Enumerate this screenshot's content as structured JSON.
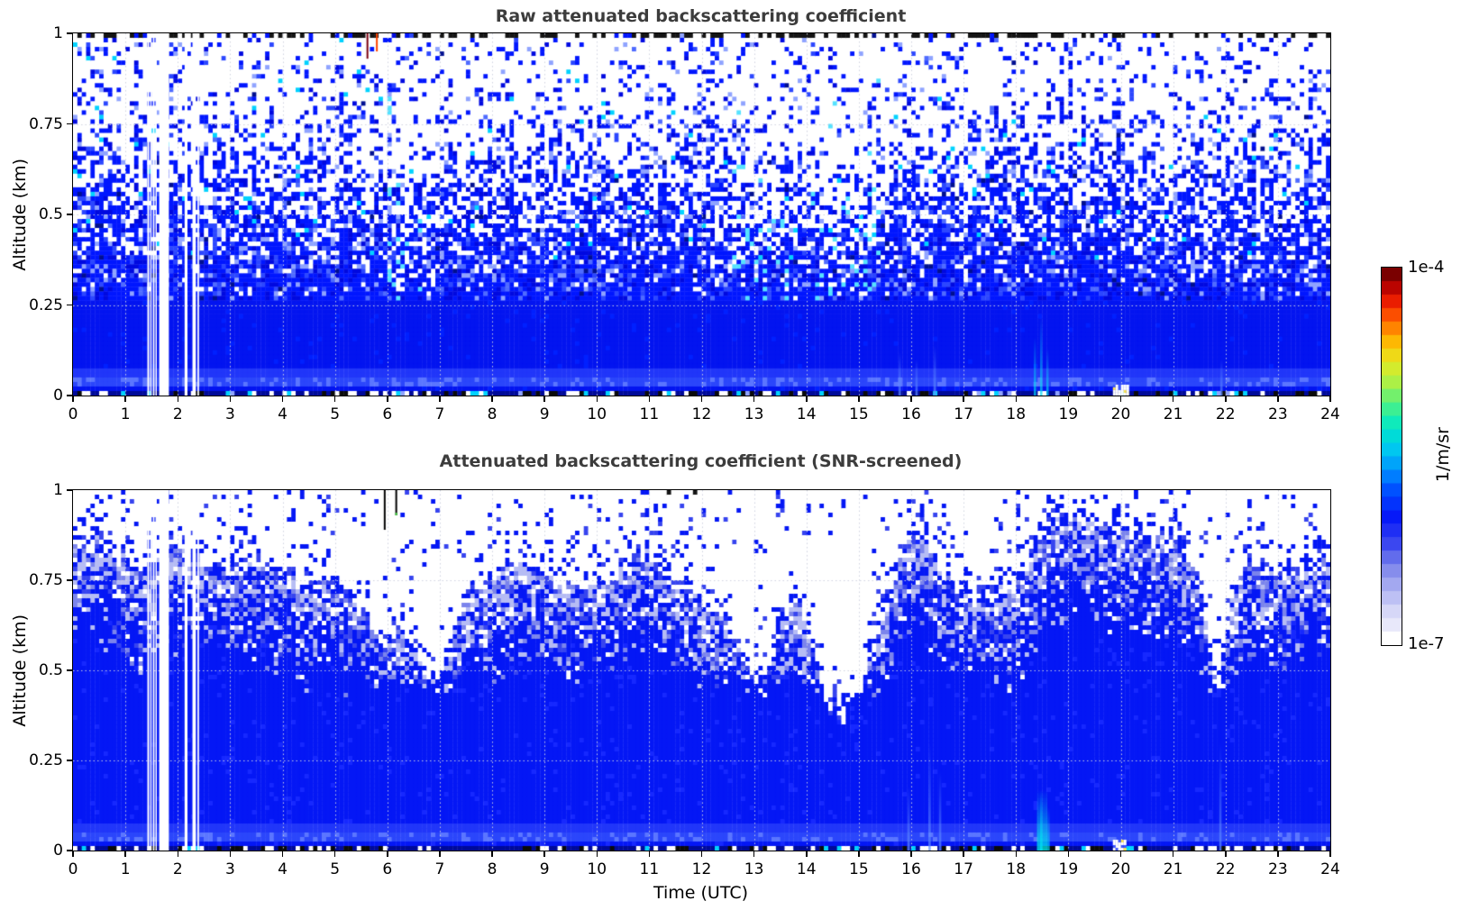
{
  "figure": {
    "background": "#ffffff",
    "title_color": "#3c3c3c"
  },
  "panels": [
    {
      "id": "raw",
      "title": "Raw attenuated backscattering coefficient",
      "ylabel": "Altitude (km)"
    },
    {
      "id": "snr_screened",
      "title": "Attenuated backscattering coefficient (SNR-screened)",
      "ylabel": "Altitude (km)",
      "xlabel": "Time (UTC)"
    }
  ],
  "axes": {
    "x_range": [
      0,
      24
    ],
    "y_range": [
      0,
      1
    ],
    "x_tick_labels": [
      "0",
      "1",
      "2",
      "3",
      "4",
      "5",
      "6",
      "7",
      "8",
      "9",
      "10",
      "11",
      "12",
      "13",
      "14",
      "15",
      "16",
      "17",
      "18",
      "19",
      "20",
      "21",
      "22",
      "23",
      "24"
    ],
    "y_tick_labels": [
      "1",
      "0.75",
      "0.5",
      "0.25",
      "0"
    ],
    "y_tick_values": [
      1,
      0.75,
      0.5,
      0.25,
      0
    ],
    "grid_x_hours": [
      1,
      2,
      3,
      4,
      5,
      6,
      7,
      8,
      9,
      10,
      11,
      12,
      13,
      14,
      15,
      16,
      17,
      18,
      19,
      20,
      21,
      22,
      23
    ],
    "grid_y_km": [
      0.25,
      0.5,
      0.75
    ]
  },
  "colorbar": {
    "top_label": "1e-4",
    "bottom_label": "1e-7",
    "unit_label": "1/m/sr",
    "scale": "log",
    "min": 1e-07,
    "max": 0.0001,
    "segments": 28,
    "stops": [
      [
        0.0,
        "#ffffff"
      ],
      [
        0.03,
        "#ecebfb"
      ],
      [
        0.08,
        "#d3d4f7"
      ],
      [
        0.14,
        "#a9aef1"
      ],
      [
        0.2,
        "#7a82ea"
      ],
      [
        0.26,
        "#3a46f0"
      ],
      [
        0.33,
        "#0617f8"
      ],
      [
        0.4,
        "#0048ff"
      ],
      [
        0.46,
        "#0090ff"
      ],
      [
        0.52,
        "#00c8f0"
      ],
      [
        0.58,
        "#00e8c8"
      ],
      [
        0.64,
        "#48f088"
      ],
      [
        0.7,
        "#a8f048"
      ],
      [
        0.76,
        "#e8e820"
      ],
      [
        0.82,
        "#ffb400"
      ],
      [
        0.88,
        "#ff5a00"
      ],
      [
        0.93,
        "#e81800"
      ],
      [
        0.97,
        "#b00000"
      ],
      [
        1.0,
        "#7a0000"
      ]
    ]
  },
  "palette": {
    "solid_blue": "#0314f0",
    "blue": "#0016ff",
    "deep_blue": "#0009e0",
    "light_blue": "#2c47ff",
    "pale_blue": "#8fa3ff",
    "cyan": "#00d2ff",
    "pale_lavender": "#b6bcf4",
    "mid_lavender": "#7b84ec",
    "trans_blue": "#3744ef",
    "screened_blue": "#0417f5"
  },
  "chart_data": [
    {
      "type": "heatmap",
      "panel": "raw",
      "title": "Raw attenuated backscattering coefficient",
      "xlabel": "",
      "ylabel": "Altitude (km)",
      "x": "time_utc_hours",
      "x_range": [
        0,
        24
      ],
      "y": "altitude_km",
      "y_range": [
        0,
        1
      ],
      "color_scale": {
        "type": "log",
        "min": 1e-07,
        "max": 0.0001,
        "unit": "1/m/sr"
      },
      "solid_signal_below_km": 0.26,
      "speckle_noise_above_km": 0.28,
      "surface_bright_bands_km": [
        [
          0.028,
          0.048
        ],
        [
          0.052,
          0.07
        ]
      ],
      "data_gaps_utc": [
        [
          1.42,
          1.455
        ],
        [
          1.475,
          1.495
        ],
        [
          1.525,
          1.555
        ],
        [
          1.575,
          1.6
        ],
        [
          1.645,
          1.83
        ],
        [
          2.13,
          2.185
        ],
        [
          2.28,
          2.345
        ],
        [
          2.375,
          2.405
        ]
      ],
      "plumes_utc": [
        {
          "center": 6.35,
          "width": 0.35
        },
        {
          "center": 13.1,
          "width": 0.5
        },
        {
          "center": 14.75,
          "width": 0.7
        }
      ],
      "spikes": [
        {
          "t": 5.62,
          "a0": 0.93,
          "a1": 1.0,
          "color": "#7a0010"
        },
        {
          "t": 5.8,
          "a0": 0.95,
          "a1": 1.0,
          "color": "#ff4500"
        }
      ],
      "surface_streaks": [
        {
          "t": 15.78,
          "h": 0.12,
          "cyan": false
        },
        {
          "t": 16.1,
          "h": 0.1,
          "cyan": false
        },
        {
          "t": 16.45,
          "h": 0.14,
          "cyan": false
        },
        {
          "t": 18.36,
          "h": 0.16,
          "cyan": true
        },
        {
          "t": 18.48,
          "h": 0.22,
          "cyan": true
        },
        {
          "t": 18.6,
          "h": 0.13,
          "cyan": true
        },
        {
          "t": 21.92,
          "h": 0.1,
          "cyan": false
        }
      ],
      "surface_features": [
        {
          "type": "bright_patch",
          "t0": 19.85,
          "t1": 20.15,
          "top_km": 0.03
        }
      ]
    },
    {
      "type": "heatmap",
      "panel": "snr_screened",
      "title": "Attenuated backscattering coefficient (SNR-screened)",
      "xlabel": "Time (UTC)",
      "ylabel": "Altitude (km)",
      "x": "time_utc_hours",
      "x_range": [
        0,
        24
      ],
      "y": "altitude_km",
      "y_range": [
        0,
        1
      ],
      "color_scale": {
        "type": "log",
        "min": 1e-07,
        "max": 0.0001,
        "unit": "1/m/sr"
      },
      "signal_top_boundary_km": {
        "x": [
          0,
          0.5,
          1,
          1.5,
          2,
          2.5,
          3,
          3.5,
          4,
          4.5,
          5,
          5.5,
          5.9,
          6.2,
          6.6,
          7,
          7.3,
          7.6,
          8,
          8.5,
          9,
          9.5,
          10,
          10.5,
          11,
          11.4,
          11.8,
          12.2,
          12.6,
          12.9,
          13.2,
          13.5,
          13.8,
          14.1,
          14.4,
          14.7,
          15,
          15.3,
          15.6,
          15.9,
          16.2,
          16.5,
          16.8,
          17.1,
          17.5,
          17.9,
          18.2,
          18.6,
          19,
          19.5,
          20,
          20.5,
          21,
          21.4,
          21.7,
          21.9,
          22.1,
          22.4,
          23,
          23.5,
          24
        ],
        "y": [
          0.82,
          0.85,
          0.8,
          0.78,
          0.83,
          0.8,
          0.78,
          0.8,
          0.76,
          0.72,
          0.74,
          0.68,
          0.57,
          0.6,
          0.52,
          0.46,
          0.62,
          0.72,
          0.76,
          0.78,
          0.75,
          0.72,
          0.74,
          0.78,
          0.82,
          0.75,
          0.7,
          0.68,
          0.6,
          0.5,
          0.47,
          0.6,
          0.72,
          0.55,
          0.4,
          0.37,
          0.42,
          0.55,
          0.72,
          0.85,
          0.88,
          0.8,
          0.72,
          0.7,
          0.72,
          0.7,
          0.8,
          0.88,
          0.92,
          0.9,
          0.88,
          0.86,
          0.86,
          0.8,
          0.55,
          0.45,
          0.7,
          0.78,
          0.76,
          0.78,
          0.8
        ]
      },
      "transition_mosaic_depth_km": 0.3,
      "mosaic_only_above_km": 0.42,
      "surface_bright_bands_km": [
        [
          0.028,
          0.048
        ],
        [
          0.052,
          0.07
        ]
      ],
      "data_gaps_utc": [
        [
          1.42,
          1.455
        ],
        [
          1.475,
          1.495
        ],
        [
          1.525,
          1.555
        ],
        [
          1.575,
          1.6
        ],
        [
          1.645,
          1.83
        ],
        [
          2.13,
          2.185
        ],
        [
          2.28,
          2.345
        ],
        [
          2.375,
          2.405
        ]
      ],
      "spikes": [
        {
          "t": 5.95,
          "a0": 0.89,
          "a1": 1.0,
          "color": "#000000"
        },
        {
          "t": 6.17,
          "a0": 0.93,
          "a1": 1.0,
          "color": "#000000",
          "tip": "#40d040"
        }
      ],
      "surface_streaks": [
        {
          "t": 15.95,
          "h": 0.18,
          "cyan": false
        },
        {
          "t": 16.35,
          "h": 0.3,
          "cyan": false
        },
        {
          "t": 16.55,
          "h": 0.22,
          "cyan": false
        },
        {
          "t": 18.48,
          "h": 0.17,
          "cyan": true
        },
        {
          "t": 18.62,
          "h": 0.12,
          "cyan": true
        },
        {
          "t": 21.9,
          "h": 0.3,
          "cyan": false
        }
      ],
      "surface_features": [
        {
          "type": "cyan_plume",
          "t0": 18.4,
          "t1": 18.6,
          "top_km": 0.17
        },
        {
          "type": "bright_patch",
          "t0": 19.85,
          "t1": 20.1,
          "top_km": 0.03
        }
      ]
    }
  ]
}
